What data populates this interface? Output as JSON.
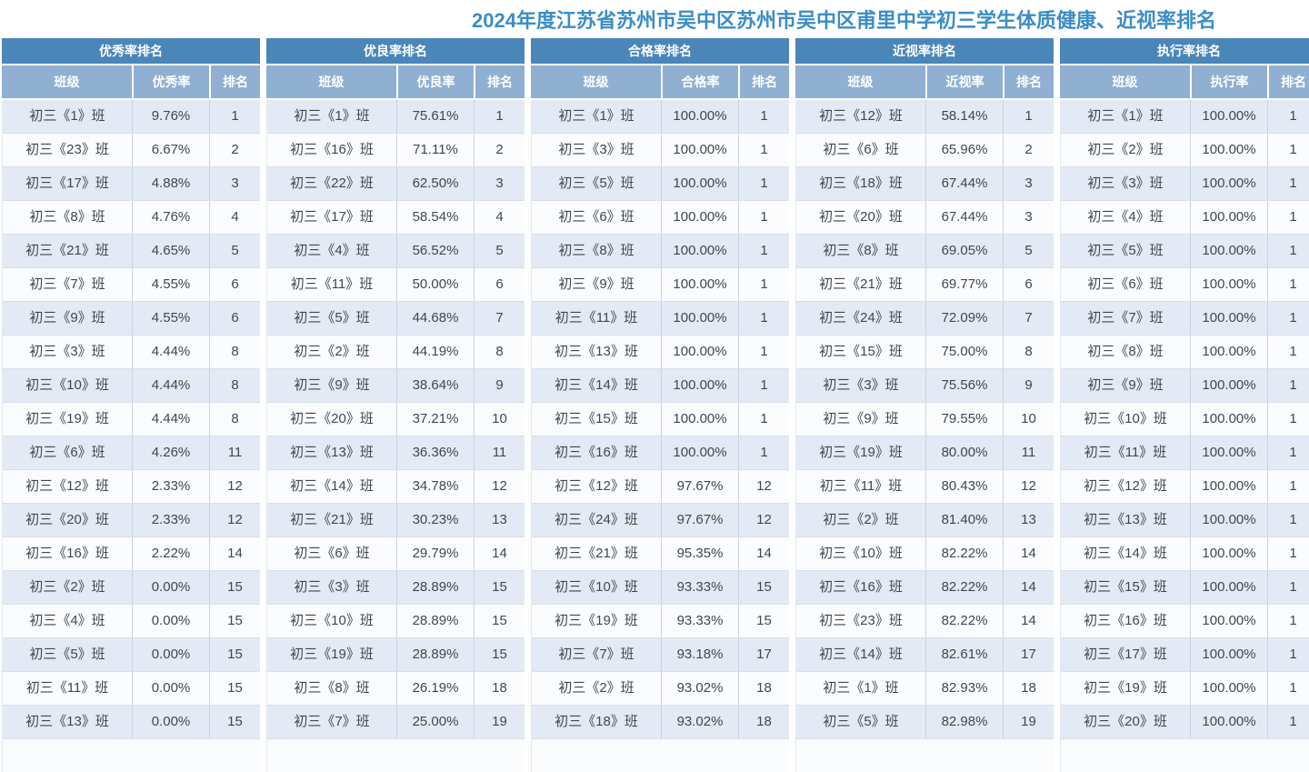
{
  "page": {
    "title": "2024年度江苏省苏州市吴中区苏州市吴中区甫里中学初三学生体质健康、近视率排名"
  },
  "colors": {
    "title_text": "#3B8DC6",
    "table_header_bg": "#4A86B8",
    "column_header_bg": "#8FB0D1",
    "header_text": "#FFFFFF",
    "row_odd_bg": "#E3EAF5",
    "row_even_bg": "#FBFCFE",
    "cell_border": "#C9D3DF",
    "body_text": "#40474E"
  },
  "tables": [
    {
      "title": "优秀率排名",
      "columns": [
        "班级",
        "优秀率",
        "排名"
      ],
      "rows": [
        [
          "初三《1》班",
          "9.76%",
          "1"
        ],
        [
          "初三《23》班",
          "6.67%",
          "2"
        ],
        [
          "初三《17》班",
          "4.88%",
          "3"
        ],
        [
          "初三《8》班",
          "4.76%",
          "4"
        ],
        [
          "初三《21》班",
          "4.65%",
          "5"
        ],
        [
          "初三《7》班",
          "4.55%",
          "6"
        ],
        [
          "初三《9》班",
          "4.55%",
          "6"
        ],
        [
          "初三《3》班",
          "4.44%",
          "8"
        ],
        [
          "初三《10》班",
          "4.44%",
          "8"
        ],
        [
          "初三《19》班",
          "4.44%",
          "8"
        ],
        [
          "初三《6》班",
          "4.26%",
          "11"
        ],
        [
          "初三《12》班",
          "2.33%",
          "12"
        ],
        [
          "初三《20》班",
          "2.33%",
          "12"
        ],
        [
          "初三《16》班",
          "2.22%",
          "14"
        ],
        [
          "初三《2》班",
          "0.00%",
          "15"
        ],
        [
          "初三《4》班",
          "0.00%",
          "15"
        ],
        [
          "初三《5》班",
          "0.00%",
          "15"
        ],
        [
          "初三《11》班",
          "0.00%",
          "15"
        ],
        [
          "初三《13》班",
          "0.00%",
          "15"
        ]
      ]
    },
    {
      "title": "优良率排名",
      "columns": [
        "班级",
        "优良率",
        "排名"
      ],
      "rows": [
        [
          "初三《1》班",
          "75.61%",
          "1"
        ],
        [
          "初三《16》班",
          "71.11%",
          "2"
        ],
        [
          "初三《22》班",
          "62.50%",
          "3"
        ],
        [
          "初三《17》班",
          "58.54%",
          "4"
        ],
        [
          "初三《4》班",
          "56.52%",
          "5"
        ],
        [
          "初三《11》班",
          "50.00%",
          "6"
        ],
        [
          "初三《5》班",
          "44.68%",
          "7"
        ],
        [
          "初三《2》班",
          "44.19%",
          "8"
        ],
        [
          "初三《9》班",
          "38.64%",
          "9"
        ],
        [
          "初三《20》班",
          "37.21%",
          "10"
        ],
        [
          "初三《13》班",
          "36.36%",
          "11"
        ],
        [
          "初三《14》班",
          "34.78%",
          "12"
        ],
        [
          "初三《21》班",
          "30.23%",
          "13"
        ],
        [
          "初三《6》班",
          "29.79%",
          "14"
        ],
        [
          "初三《3》班",
          "28.89%",
          "15"
        ],
        [
          "初三《10》班",
          "28.89%",
          "15"
        ],
        [
          "初三《19》班",
          "28.89%",
          "15"
        ],
        [
          "初三《8》班",
          "26.19%",
          "18"
        ],
        [
          "初三《7》班",
          "25.00%",
          "19"
        ]
      ]
    },
    {
      "title": "合格率排名",
      "columns": [
        "班级",
        "合格率",
        "排名"
      ],
      "rows": [
        [
          "初三《1》班",
          "100.00%",
          "1"
        ],
        [
          "初三《3》班",
          "100.00%",
          "1"
        ],
        [
          "初三《5》班",
          "100.00%",
          "1"
        ],
        [
          "初三《6》班",
          "100.00%",
          "1"
        ],
        [
          "初三《8》班",
          "100.00%",
          "1"
        ],
        [
          "初三《9》班",
          "100.00%",
          "1"
        ],
        [
          "初三《11》班",
          "100.00%",
          "1"
        ],
        [
          "初三《13》班",
          "100.00%",
          "1"
        ],
        [
          "初三《14》班",
          "100.00%",
          "1"
        ],
        [
          "初三《15》班",
          "100.00%",
          "1"
        ],
        [
          "初三《16》班",
          "100.00%",
          "1"
        ],
        [
          "初三《12》班",
          "97.67%",
          "12"
        ],
        [
          "初三《24》班",
          "97.67%",
          "12"
        ],
        [
          "初三《21》班",
          "95.35%",
          "14"
        ],
        [
          "初三《10》班",
          "93.33%",
          "15"
        ],
        [
          "初三《19》班",
          "93.33%",
          "15"
        ],
        [
          "初三《7》班",
          "93.18%",
          "17"
        ],
        [
          "初三《2》班",
          "93.02%",
          "18"
        ],
        [
          "初三《18》班",
          "93.02%",
          "18"
        ]
      ]
    },
    {
      "title": "近视率排名",
      "columns": [
        "班级",
        "近视率",
        "排名"
      ],
      "rows": [
        [
          "初三《12》班",
          "58.14%",
          "1"
        ],
        [
          "初三《6》班",
          "65.96%",
          "2"
        ],
        [
          "初三《18》班",
          "67.44%",
          "3"
        ],
        [
          "初三《20》班",
          "67.44%",
          "3"
        ],
        [
          "初三《8》班",
          "69.05%",
          "5"
        ],
        [
          "初三《21》班",
          "69.77%",
          "6"
        ],
        [
          "初三《24》班",
          "72.09%",
          "7"
        ],
        [
          "初三《15》班",
          "75.00%",
          "8"
        ],
        [
          "初三《3》班",
          "75.56%",
          "9"
        ],
        [
          "初三《9》班",
          "79.55%",
          "10"
        ],
        [
          "初三《19》班",
          "80.00%",
          "11"
        ],
        [
          "初三《11》班",
          "80.43%",
          "12"
        ],
        [
          "初三《2》班",
          "81.40%",
          "13"
        ],
        [
          "初三《10》班",
          "82.22%",
          "14"
        ],
        [
          "初三《16》班",
          "82.22%",
          "14"
        ],
        [
          "初三《23》班",
          "82.22%",
          "14"
        ],
        [
          "初三《14》班",
          "82.61%",
          "17"
        ],
        [
          "初三《1》班",
          "82.93%",
          "18"
        ],
        [
          "初三《5》班",
          "82.98%",
          "19"
        ]
      ]
    },
    {
      "title": "执行率排名",
      "columns": [
        "班级",
        "执行率",
        "排名"
      ],
      "rows": [
        [
          "初三《1》班",
          "100.00%",
          "1"
        ],
        [
          "初三《2》班",
          "100.00%",
          "1"
        ],
        [
          "初三《3》班",
          "100.00%",
          "1"
        ],
        [
          "初三《4》班",
          "100.00%",
          "1"
        ],
        [
          "初三《5》班",
          "100.00%",
          "1"
        ],
        [
          "初三《6》班",
          "100.00%",
          "1"
        ],
        [
          "初三《7》班",
          "100.00%",
          "1"
        ],
        [
          "初三《8》班",
          "100.00%",
          "1"
        ],
        [
          "初三《9》班",
          "100.00%",
          "1"
        ],
        [
          "初三《10》班",
          "100.00%",
          "1"
        ],
        [
          "初三《11》班",
          "100.00%",
          "1"
        ],
        [
          "初三《12》班",
          "100.00%",
          "1"
        ],
        [
          "初三《13》班",
          "100.00%",
          "1"
        ],
        [
          "初三《14》班",
          "100.00%",
          "1"
        ],
        [
          "初三《15》班",
          "100.00%",
          "1"
        ],
        [
          "初三《16》班",
          "100.00%",
          "1"
        ],
        [
          "初三《17》班",
          "100.00%",
          "1"
        ],
        [
          "初三《19》班",
          "100.00%",
          "1"
        ],
        [
          "初三《20》班",
          "100.00%",
          "1"
        ]
      ]
    }
  ]
}
